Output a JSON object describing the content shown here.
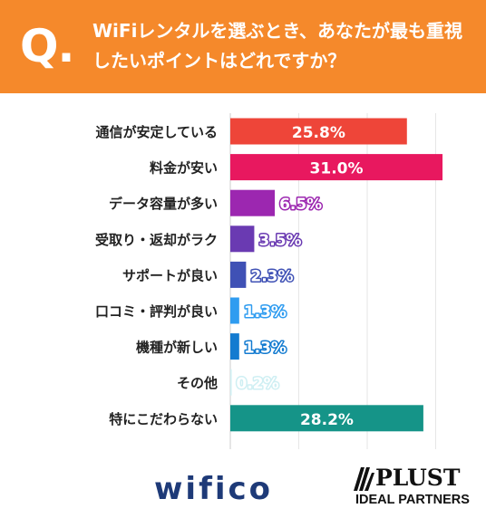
{
  "header": {
    "q_mark": "Q.",
    "question": "WiFiレンタルを選ぶとき、あなたが最も重視したいポイントはどれですか？",
    "background_color": "#f5892b"
  },
  "chart_data": {
    "type": "bar",
    "orientation": "horizontal",
    "categories": [
      "通信が安定している",
      "料金が安い",
      "データ容量が多い",
      "受取り・返却がラク",
      "サポートが良い",
      "口コミ・評判が良い",
      "機種が新しい",
      "その他",
      "特にこだわらない"
    ],
    "values": [
      25.8,
      31.0,
      6.5,
      3.5,
      2.3,
      1.3,
      1.3,
      0.2,
      28.2
    ],
    "data_labels": [
      "25.8%",
      "31.0%",
      "6.5%",
      "3.5%",
      "2.3%",
      "1.3%",
      "1.3%",
      "0.2%",
      "28.2%"
    ],
    "colors": [
      "#ee4539",
      "#e8185f",
      "#9c27b0",
      "#6a3ab2",
      "#3f51b5",
      "#2f9cf0",
      "#137bd0",
      "#cfeff3",
      "#159488"
    ],
    "xlim": [
      0,
      33
    ],
    "grid": true,
    "title": "",
    "xlabel": "",
    "ylabel": ""
  },
  "logos": {
    "wifico": "wifico",
    "plust_name": "PLUST",
    "plust_sub": "IDEAL PARTNERS"
  }
}
